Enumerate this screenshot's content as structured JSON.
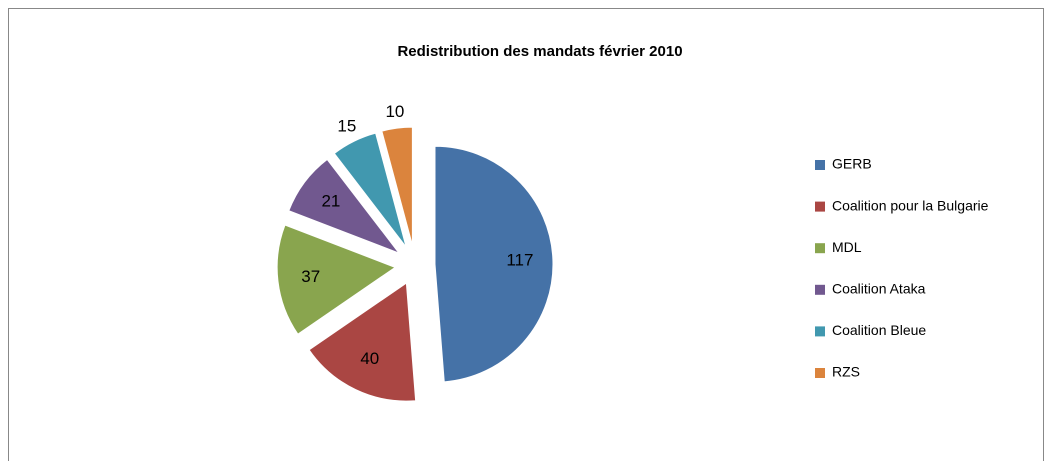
{
  "chart_data": {
    "type": "pie",
    "title": "Redistribution des mandats  février 2010",
    "categories": [
      "GERB",
      "Coalition pour la Bulgarie",
      "MDL",
      "Coalition Ataka",
      "Coalition Bleue",
      "RZS"
    ],
    "values": [
      117,
      40,
      37,
      21,
      15,
      10
    ],
    "colors": [
      "#4572a7",
      "#aa4643",
      "#89a54e",
      "#71588f",
      "#4198af",
      "#db843d"
    ],
    "exploded": true,
    "legend": "right"
  }
}
